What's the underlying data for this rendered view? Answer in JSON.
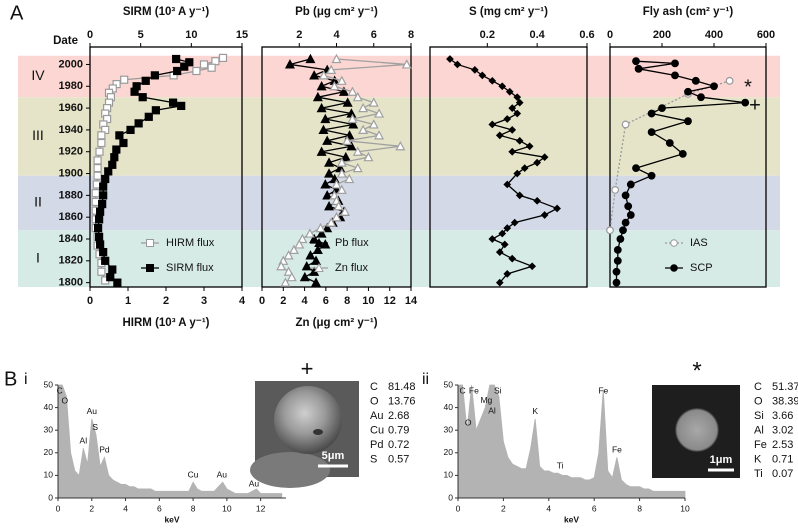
{
  "panel_labels": {
    "a": "A",
    "b": "B",
    "b_i": "i",
    "b_ii": "ii"
  },
  "zones": [
    {
      "label": "IV",
      "from": 1970,
      "to": 2008,
      "color": "#fcd6d3"
    },
    {
      "label": "III",
      "from": 1898,
      "to": 1970,
      "color": "#e5e4c9"
    },
    {
      "label": "II",
      "from": 1848,
      "to": 1898,
      "color": "#d4d9e8"
    },
    {
      "label": "I",
      "from": 1796,
      "to": 1848,
      "color": "#d7ebe6"
    }
  ],
  "chart_data": [
    {
      "type": "line",
      "orientation": "horizontal",
      "xlabel": "SIRM (10³ A y⁻¹)",
      "x2label": "HIRM (10³ A y⁻¹)",
      "ylabel": "Date",
      "xlim": [
        0,
        15
      ],
      "xticks": [
        0,
        5,
        10,
        15
      ],
      "x2lim": [
        0,
        4
      ],
      "x2ticks": [
        0,
        1,
        2,
        3,
        4
      ],
      "ylim": [
        1796,
        2016
      ],
      "yticks": [
        1800,
        1820,
        1840,
        1860,
        1880,
        1900,
        1920,
        1940,
        1960,
        1980,
        2000
      ],
      "legend": "lower right",
      "series": [
        {
          "name": "HIRM flux",
          "color": "#9a9a9a",
          "marker": "square",
          "filled": false,
          "axis": "x2",
          "y": [
            2006,
            2003,
            2000,
            1997,
            1994,
            1990,
            1986,
            1982,
            1978,
            1974,
            1970,
            1965,
            1960,
            1955,
            1950,
            1945,
            1940,
            1935,
            1928,
            1920,
            1912,
            1905,
            1898,
            1890,
            1882,
            1874,
            1866,
            1858,
            1850,
            1842,
            1834,
            1826,
            1818,
            1810,
            1802
          ],
          "values": [
            3.5,
            3.3,
            3.0,
            3.2,
            2.8,
            2.2,
            0.9,
            0.7,
            0.6,
            0.5,
            0.55,
            0.5,
            0.45,
            0.4,
            0.45,
            0.35,
            0.4,
            0.3,
            0.3,
            0.25,
            0.2,
            0.2,
            0.2,
            0.18,
            0.15,
            0.15,
            0.15,
            0.15,
            0.15,
            0.2,
            0.2,
            0.25,
            0.3,
            0.3,
            0.4
          ]
        },
        {
          "name": "SIRM flux",
          "color": "#000000",
          "marker": "square",
          "filled": true,
          "y": [
            2005,
            2002,
            1998,
            1994,
            1990,
            1985,
            1980,
            1975,
            1970,
            1965,
            1962,
            1958,
            1952,
            1946,
            1940,
            1935,
            1928,
            1922,
            1915,
            1908,
            1902,
            1895,
            1888,
            1880,
            1872,
            1865,
            1858,
            1850,
            1842,
            1835,
            1828,
            1820,
            1812,
            1805,
            1800
          ],
          "values": [
            8.5,
            9.8,
            9.3,
            8.6,
            6.4,
            5.5,
            4.6,
            4.4,
            5.2,
            8.2,
            9.0,
            6.5,
            5.8,
            4.8,
            4.0,
            2.9,
            3.3,
            2.6,
            2.4,
            2.2,
            1.8,
            1.5,
            1.3,
            1.3,
            1.2,
            1.0,
            0.9,
            0.8,
            0.9,
            1.0,
            1.3,
            1.5,
            2.2,
            2.0,
            2.7
          ]
        }
      ]
    },
    {
      "type": "line",
      "orientation": "horizontal",
      "xlabel": "Pb (μg cm² y⁻¹)",
      "x2label": "Zn (μg cm² y⁻¹)",
      "xlim": [
        0,
        8
      ],
      "xticks": [
        2,
        4,
        6,
        8
      ],
      "x2lim": [
        0,
        14
      ],
      "x2ticks": [
        0,
        2,
        4,
        6,
        8,
        10,
        12,
        14
      ],
      "ylim": [
        1796,
        2016
      ],
      "legend": "lower right",
      "series": [
        {
          "name": "Pb flux",
          "color": "#000000",
          "marker": "triangle",
          "filled": true,
          "y": [
            2005,
            2000,
            1995,
            1990,
            1985,
            1980,
            1975,
            1970,
            1965,
            1960,
            1955,
            1950,
            1945,
            1940,
            1935,
            1930,
            1925,
            1920,
            1915,
            1910,
            1905,
            1900,
            1895,
            1890,
            1885,
            1880,
            1875,
            1870,
            1865,
            1860,
            1855,
            1850,
            1845,
            1840,
            1835,
            1830,
            1825,
            1820,
            1815,
            1810,
            1805,
            1800
          ],
          "values": [
            2.6,
            1.5,
            3.5,
            2.8,
            3.9,
            3.2,
            4.4,
            3.0,
            4.6,
            3.2,
            4.8,
            3.4,
            4.9,
            3.3,
            4.7,
            3.5,
            4.8,
            3.2,
            4.5,
            3.6,
            4.2,
            3.6,
            3.9,
            3.4,
            4.0,
            3.5,
            4.1,
            3.6,
            4.4,
            4.2,
            3.8,
            3.5,
            3.2,
            2.8,
            3.4,
            3.0,
            2.6,
            2.9,
            2.4,
            2.8,
            2.3,
            2.9
          ]
        },
        {
          "name": "Zn flux",
          "color": "#a0a0a0",
          "marker": "triangle",
          "filled": false,
          "axis": "x2",
          "y": [
            2005,
            2000,
            1995,
            1990,
            1985,
            1980,
            1975,
            1970,
            1965,
            1960,
            1955,
            1950,
            1945,
            1940,
            1935,
            1930,
            1925,
            1920,
            1915,
            1910,
            1905,
            1900,
            1895,
            1890,
            1885,
            1880,
            1875,
            1870,
            1865,
            1860,
            1855,
            1850,
            1845,
            1840,
            1835,
            1830,
            1825,
            1820,
            1815,
            1810,
            1805,
            1800
          ],
          "values": [
            7.0,
            13.6,
            6.5,
            5.8,
            7.5,
            6.8,
            8.5,
            9.0,
            10.5,
            9.5,
            11.0,
            8.5,
            10.5,
            9.5,
            11.0,
            8.0,
            13.0,
            9.0,
            10.0,
            7.5,
            9.0,
            7.5,
            8.2,
            7.0,
            7.5,
            6.8,
            7.0,
            7.2,
            7.8,
            7.0,
            6.5,
            5.5,
            4.5,
            3.8,
            3.5,
            3.0,
            2.5,
            2.0,
            1.8,
            2.5,
            2.8,
            2.2
          ]
        }
      ]
    },
    {
      "type": "line",
      "orientation": "horizontal",
      "xlabel": "S (mg cm² y⁻¹)",
      "xlim": [
        -0.03,
        0.6
      ],
      "xticks": [
        0.2,
        0.4,
        0.6
      ],
      "ylim": [
        1796,
        2016
      ],
      "color": "#000000",
      "marker": "diamond",
      "filled": true,
      "y": [
        2005,
        2000,
        1995,
        1990,
        1985,
        1980,
        1975,
        1970,
        1965,
        1960,
        1955,
        1950,
        1945,
        1940,
        1935,
        1930,
        1925,
        1920,
        1915,
        1910,
        1905,
        1900,
        1890,
        1880,
        1875,
        1868,
        1862,
        1855,
        1850,
        1845,
        1840,
        1835,
        1828,
        1822,
        1815,
        1808,
        1800
      ],
      "values": [
        0.05,
        0.08,
        0.15,
        0.18,
        0.22,
        0.26,
        0.29,
        0.32,
        0.33,
        0.3,
        0.32,
        0.28,
        0.22,
        0.3,
        0.25,
        0.33,
        0.37,
        0.3,
        0.43,
        0.4,
        0.35,
        0.32,
        0.28,
        0.33,
        0.4,
        0.48,
        0.43,
        0.31,
        0.28,
        0.26,
        0.22,
        0.27,
        0.25,
        0.3,
        0.38,
        0.28,
        0.25
      ]
    },
    {
      "type": "line",
      "orientation": "horizontal",
      "xlabel": "Fly ash (cm² y⁻¹)",
      "xlim": [
        0,
        600
      ],
      "xticks": [
        0,
        200,
        400,
        600
      ],
      "ylim": [
        1796,
        2016
      ],
      "legend": "lower right",
      "annotations": [
        "*",
        "+"
      ],
      "series": [
        {
          "name": "IAS",
          "color": "#999999",
          "marker": "circle",
          "filled": false,
          "line_style": "dotted",
          "y": [
            1985,
            1973,
            1945,
            1885,
            1848
          ],
          "values": [
            460,
            300,
            60,
            20,
            0
          ]
        },
        {
          "name": "SCP",
          "color": "#000000",
          "marker": "circle",
          "filled": true,
          "y": [
            2003,
            2001,
            1996,
            1990,
            1985,
            1980,
            1975,
            1970,
            1965,
            1960,
            1955,
            1948,
            1938,
            1928,
            1918,
            1905,
            1898,
            1890,
            1880,
            1870,
            1862,
            1855,
            1848,
            1840,
            1830,
            1820,
            1810,
            1800
          ],
          "values": [
            100,
            250,
            110,
            250,
            330,
            400,
            300,
            350,
            520,
            200,
            160,
            300,
            160,
            230,
            280,
            100,
            160,
            80,
            60,
            70,
            80,
            60,
            50,
            40,
            30,
            30,
            25,
            25
          ]
        }
      ]
    },
    {
      "type": "area",
      "xlabel": "keV",
      "color": "#b3b3b3",
      "xlim": [
        0,
        13.5
      ],
      "xticks": [
        0,
        2,
        4,
        6,
        8,
        10,
        12
      ],
      "ylim": [
        0,
        50
      ],
      "yticks": [
        0,
        10,
        20,
        30,
        40,
        50
      ],
      "x": [
        0,
        0.25,
        0.5,
        0.75,
        1,
        1.25,
        1.5,
        1.75,
        2,
        2.25,
        2.5,
        2.75,
        3,
        3.25,
        3.5,
        3.75,
        4,
        4.25,
        4.5,
        4.75,
        5,
        5.25,
        5.5,
        5.75,
        6,
        6.25,
        6.5,
        6.75,
        7,
        7.25,
        7.5,
        7.75,
        8,
        8.25,
        8.5,
        8.75,
        9,
        9.25,
        9.5,
        9.75,
        10,
        10.25,
        10.5,
        10.75,
        11,
        11.25,
        11.5,
        11.75,
        12,
        12.25,
        12.5,
        12.75,
        13,
        13.25
      ],
      "values": [
        50,
        50,
        45,
        20,
        12,
        10,
        22,
        15,
        35,
        28,
        14,
        18,
        10,
        8,
        7,
        6,
        6,
        5,
        5,
        4,
        4,
        4,
        4,
        3,
        3,
        3,
        3,
        3,
        3,
        3,
        3,
        3,
        7,
        4,
        3,
        3,
        3,
        3,
        5,
        7,
        4,
        3,
        2,
        2,
        2,
        2,
        3,
        4,
        2,
        2,
        2,
        2,
        2,
        2
      ],
      "peak_labels": [
        {
          "text": "C",
          "x": 0.1
        },
        {
          "text": "O",
          "x": 0.4
        },
        {
          "text": "Au",
          "x": 2.0
        },
        {
          "text": "S",
          "x": 2.2
        },
        {
          "text": "Al",
          "x": 1.5
        },
        {
          "text": "Pd",
          "x": 2.75
        },
        {
          "text": "Cu",
          "x": 8.0
        },
        {
          "text": "Au",
          "x": 9.7
        },
        {
          "text": "Au",
          "x": 11.6
        }
      ],
      "image_marker": "+",
      "scale_bar": "5μm",
      "composition": [
        {
          "element": "C",
          "value": "81.48"
        },
        {
          "element": "O",
          "value": "13.76"
        },
        {
          "element": "Au",
          "value": "2.68"
        },
        {
          "element": "Cu",
          "value": "0.79"
        },
        {
          "element": "Pd",
          "value": "0.72"
        },
        {
          "element": "S",
          "value": "0.57"
        }
      ]
    },
    {
      "type": "area",
      "xlabel": "keV",
      "color": "#b3b3b3",
      "xlim": [
        0,
        10
      ],
      "xticks": [
        0,
        2,
        4,
        6,
        8,
        10
      ],
      "ylim": [
        0,
        50
      ],
      "yticks": [
        0,
        10,
        20,
        30,
        40,
        50
      ],
      "x": [
        0,
        0.2,
        0.4,
        0.6,
        0.8,
        1,
        1.2,
        1.4,
        1.6,
        1.8,
        2,
        2.2,
        2.4,
        2.6,
        2.8,
        3,
        3.2,
        3.4,
        3.6,
        3.8,
        4,
        4.2,
        4.4,
        4.6,
        4.8,
        5,
        5.2,
        5.4,
        5.6,
        5.8,
        6,
        6.2,
        6.4,
        6.6,
        6.8,
        7,
        7.2,
        7.4,
        7.6,
        7.8,
        8,
        8.2,
        8.4,
        8.6,
        8.8,
        9,
        9.2,
        9.4,
        9.6,
        9.8,
        10
      ],
      "values": [
        50,
        50,
        30,
        50,
        30,
        35,
        40,
        50,
        50,
        45,
        25,
        18,
        15,
        14,
        13,
        13,
        22,
        35,
        14,
        12,
        12,
        11,
        11,
        10,
        10,
        9,
        9,
        9,
        8,
        8,
        9,
        20,
        48,
        12,
        9,
        18,
        8,
        6,
        5,
        5,
        5,
        4,
        4,
        3,
        3,
        3,
        3,
        3,
        3,
        3,
        3
      ],
      "peak_labels": [
        {
          "text": "C",
          "x": 0.2
        },
        {
          "text": "O",
          "x": 0.45
        },
        {
          "text": "Fe",
          "x": 0.7
        },
        {
          "text": "Mg",
          "x": 1.25
        },
        {
          "text": "Al",
          "x": 1.5
        },
        {
          "text": "Si",
          "x": 1.75
        },
        {
          "text": "K",
          "x": 3.4
        },
        {
          "text": "Ti",
          "x": 4.5
        },
        {
          "text": "Fe",
          "x": 6.4
        },
        {
          "text": "Fe",
          "x": 7.0
        }
      ],
      "image_marker": "*",
      "scale_bar": "1μm",
      "composition": [
        {
          "element": "C",
          "value": "51.37"
        },
        {
          "element": "O",
          "value": "38.39"
        },
        {
          "element": "Si",
          "value": "3.66"
        },
        {
          "element": "Al",
          "value": "3.02"
        },
        {
          "element": "Fe",
          "value": "2.53"
        },
        {
          "element": "K",
          "value": "0.71"
        },
        {
          "element": "Ti",
          "value": "0.07"
        }
      ]
    }
  ]
}
